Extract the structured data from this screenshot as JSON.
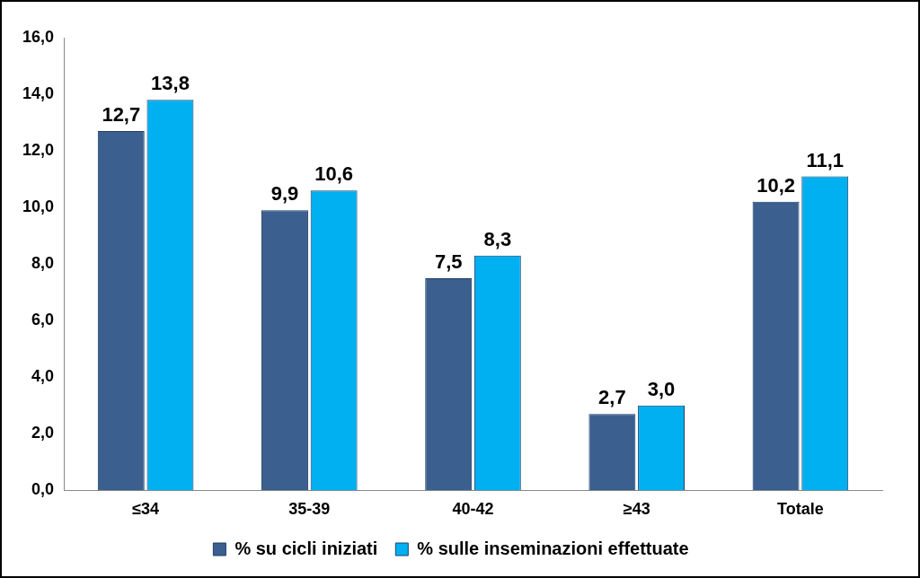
{
  "chart_data": {
    "type": "bar",
    "categories": [
      "≤34",
      "35-39",
      "40-42",
      "≥43",
      "Totale"
    ],
    "series": [
      {
        "name": "% su cicli iniziati",
        "color": "#3B5F8F",
        "values": [
          12.7,
          9.9,
          7.5,
          2.7,
          10.2
        ],
        "value_labels": [
          "12,7",
          "9,9",
          "7,5",
          "2,7",
          "10,2"
        ]
      },
      {
        "name": "% sulle inseminazioni effettuate",
        "color": "#00B0F0",
        "values": [
          13.8,
          10.6,
          8.3,
          3.0,
          11.1
        ],
        "value_labels": [
          "13,8",
          "10,6",
          "8,3",
          "3,0",
          "11,1"
        ]
      }
    ],
    "ylim": [
      0,
      16
    ],
    "yticks": [
      {
        "value": 0,
        "label": "0,0"
      },
      {
        "value": 2,
        "label": "2,0"
      },
      {
        "value": 4,
        "label": "4,0"
      },
      {
        "value": 6,
        "label": "6,0"
      },
      {
        "value": 8,
        "label": "8,0"
      },
      {
        "value": 10,
        "label": "10,0"
      },
      {
        "value": 12,
        "label": "12,0"
      },
      {
        "value": 14,
        "label": "14,0"
      },
      {
        "value": 16,
        "label": "16,0"
      }
    ],
    "grid": false,
    "legend": "bottom",
    "data_labels": true
  }
}
